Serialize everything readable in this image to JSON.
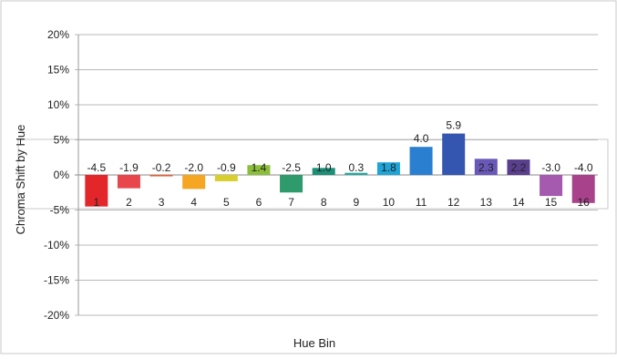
{
  "chart_data": {
    "type": "bar",
    "title": "",
    "xlabel": "Hue Bin",
    "ylabel": "Chroma Shift by Hue",
    "ylim": [
      -20,
      20
    ],
    "y_ticks": [
      "20%",
      "15%",
      "10%",
      "5%",
      "0%",
      "-5%",
      "-10%",
      "-15%",
      "-20%"
    ],
    "y_tick_values": [
      20,
      15,
      10,
      5,
      0,
      -5,
      -10,
      -15,
      -20
    ],
    "grid": true,
    "legend": "none",
    "categories": [
      "1",
      "2",
      "3",
      "4",
      "5",
      "6",
      "7",
      "8",
      "9",
      "10",
      "11",
      "12",
      "13",
      "14",
      "15",
      "16"
    ],
    "values": [
      -4.5,
      -1.9,
      -0.2,
      -2.0,
      -0.9,
      1.4,
      -2.5,
      1.0,
      0.3,
      1.8,
      4.0,
      5.9,
      2.3,
      2.2,
      -3.0,
      -4.0
    ],
    "data_labels": [
      "-4.5",
      "-1.9",
      "-0.2",
      "-2.0",
      "-0.9",
      "1.4",
      "-2.5",
      "1.0",
      "0.3",
      "1.8",
      "4.0",
      "5.9",
      "2.3",
      "2.2",
      "-3.0",
      "-4.0"
    ],
    "colors": [
      "#e3262a",
      "#e8464d",
      "#ec5a2e",
      "#f5a623",
      "#d8cf2e",
      "#8bbf3a",
      "#2f9a6c",
      "#1b8f78",
      "#23a8a0",
      "#1fa4d8",
      "#2a7fd0",
      "#3556b0",
      "#6a58b8",
      "#5a3f8e",
      "#a55ab0",
      "#a8428a"
    ]
  }
}
